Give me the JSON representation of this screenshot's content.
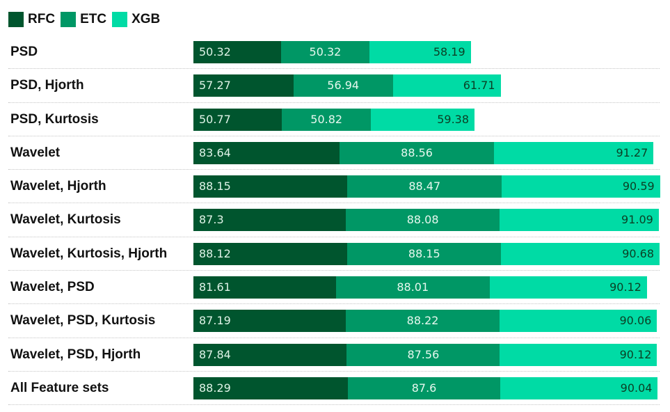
{
  "chart_data": {
    "type": "bar",
    "orientation": "horizontal",
    "stacked": true,
    "legend_position": "top-left",
    "grid": false,
    "categories": [
      "PSD",
      "PSD, Hjorth",
      "PSD, Kurtosis",
      "Wavelet",
      "Wavelet, Hjorth",
      "Wavelet, Kurtosis",
      "Wavelet, Kurtosis, Hjorth",
      "Wavelet, PSD",
      "Wavelet, PSD, Kurtosis",
      "Wavelet, PSD, Hjorth",
      "All Feature sets"
    ],
    "series": [
      {
        "name": "RFC",
        "color": "#00552e",
        "values": [
          "50.32",
          "57.27",
          "50.77",
          "83.64",
          "88.15",
          "87.3",
          "88.12",
          "81.61",
          "87.19",
          "87.84",
          "88.29"
        ]
      },
      {
        "name": "ETC",
        "color": "#009765",
        "values": [
          "50.32",
          "56.94",
          "50.82",
          "88.56",
          "88.47",
          "88.08",
          "88.15",
          "88.01",
          "88.22",
          "87.56",
          "87.6"
        ]
      },
      {
        "name": "XGB",
        "color": "#00dba5",
        "values": [
          "58.19",
          "61.71",
          "59.38",
          "91.27",
          "90.59",
          "91.09",
          "90.68",
          "90.12",
          "90.06",
          "90.12",
          "90.04"
        ]
      }
    ]
  }
}
